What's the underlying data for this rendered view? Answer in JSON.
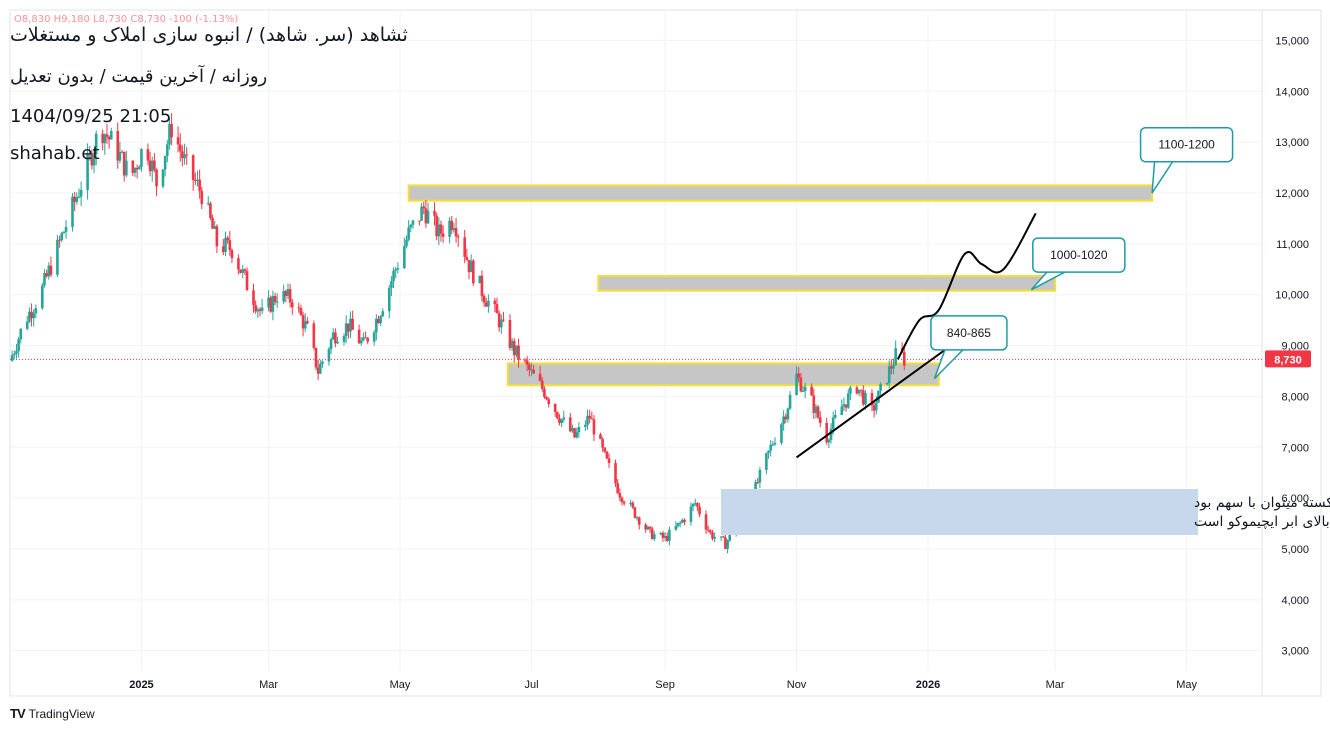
{
  "header": {
    "title": "ثشاهد (سر. شاهد) / انبوه سازی املاک و مستغلات",
    "subtitle": "روزانه / آخرین قیمت / بدون تعدیل",
    "timestamp": "1404/09/25 21:05",
    "site": "shahab.et",
    "ohlc": "O8,830 H9,180 L8,730 C8,730 -100 (-1.13%)"
  },
  "brand": {
    "name": "TradingView",
    "logo": "TV"
  },
  "colors": {
    "up": "#26a69a",
    "down": "#f23645",
    "zone_fill": "#c6c6c6",
    "zone_border": "#f4de3a",
    "callout_border": "#1f9aa6",
    "note_bg": "#c8d8ec",
    "price_label": "#f23645"
  },
  "chart_data": {
    "type": "candlestick",
    "y_axis": {
      "ylim": [
        2600,
        15600
      ],
      "ticks": [
        3000,
        4000,
        5000,
        6000,
        7000,
        8000,
        9000,
        10000,
        11000,
        12000,
        13000,
        14000,
        15000
      ],
      "tick_labels": [
        "3,000",
        "4,000",
        "5,000",
        "6,000",
        "7,000",
        "8,000",
        "9,000",
        "10,000",
        "11,000",
        "12,000",
        "13,000",
        "14,000",
        "15,000"
      ]
    },
    "x_axis": {
      "range": [
        "2024-11-01",
        "2026-06-05"
      ],
      "ticks": [
        {
          "date": "2025-01-01",
          "label": "2025",
          "bold": true
        },
        {
          "date": "2025-03-01",
          "label": "Mar",
          "bold": false
        },
        {
          "date": "2025-05-01",
          "label": "May",
          "bold": false
        },
        {
          "date": "2025-07-01",
          "label": "Jul",
          "bold": false
        },
        {
          "date": "2025-09-01",
          "label": "Sep",
          "bold": false
        },
        {
          "date": "2025-11-01",
          "label": "Nov",
          "bold": false
        },
        {
          "date": "2026-01-01",
          "label": "2026",
          "bold": true
        },
        {
          "date": "2026-03-01",
          "label": "Mar",
          "bold": false
        },
        {
          "date": "2026-05-01",
          "label": "May",
          "bold": false
        }
      ]
    },
    "grid": true,
    "last_price": {
      "value": 8730,
      "label": "8,730"
    },
    "price_path": [
      [
        "2024-11-01",
        8700
      ],
      [
        "2024-11-08",
        9500
      ],
      [
        "2024-11-15",
        10000
      ],
      [
        "2024-11-22",
        10800
      ],
      [
        "2024-11-29",
        11600
      ],
      [
        "2024-12-06",
        12400
      ],
      [
        "2024-12-13",
        13300
      ],
      [
        "2024-12-20",
        12900
      ],
      [
        "2024-12-27",
        12300
      ],
      [
        "2025-01-03",
        13000
      ],
      [
        "2025-01-08",
        12200
      ],
      [
        "2025-01-15",
        13300
      ],
      [
        "2025-01-22",
        12500
      ],
      [
        "2025-01-29",
        12000
      ],
      [
        "2025-02-05",
        11000
      ],
      [
        "2025-02-12",
        10900
      ],
      [
        "2025-02-19",
        10200
      ],
      [
        "2025-02-26",
        9600
      ],
      [
        "2025-03-05",
        10000
      ],
      [
        "2025-03-12",
        9900
      ],
      [
        "2025-03-19",
        9300
      ],
      [
        "2025-03-24",
        8500
      ],
      [
        "2025-03-31",
        9200
      ],
      [
        "2025-04-07",
        9400
      ],
      [
        "2025-04-14",
        9000
      ],
      [
        "2025-04-21",
        9600
      ],
      [
        "2025-04-28",
        10400
      ],
      [
        "2025-05-05",
        11200
      ],
      [
        "2025-05-12",
        11700
      ],
      [
        "2025-05-19",
        11200
      ],
      [
        "2025-05-26",
        11500
      ],
      [
        "2025-06-02",
        10600
      ],
      [
        "2025-06-09",
        10000
      ],
      [
        "2025-06-16",
        9500
      ],
      [
        "2025-06-23",
        8900
      ],
      [
        "2025-06-30",
        8500
      ],
      [
        "2025-07-07",
        8100
      ],
      [
        "2025-07-14",
        7600
      ],
      [
        "2025-07-21",
        7200
      ],
      [
        "2025-07-28",
        7600
      ],
      [
        "2025-08-04",
        6800
      ],
      [
        "2025-08-11",
        6100
      ],
      [
        "2025-08-18",
        5700
      ],
      [
        "2025-08-25",
        5300
      ],
      [
        "2025-09-01",
        5200
      ],
      [
        "2025-09-08",
        5500
      ],
      [
        "2025-09-15",
        5900
      ],
      [
        "2025-09-22",
        5300
      ],
      [
        "2025-09-29",
        5100
      ],
      [
        "2025-10-06",
        5600
      ],
      [
        "2025-10-13",
        6200
      ],
      [
        "2025-10-20",
        7000
      ],
      [
        "2025-10-27",
        7700
      ],
      [
        "2025-11-01",
        8400
      ],
      [
        "2025-11-08",
        7900
      ],
      [
        "2025-11-15",
        7200
      ],
      [
        "2025-11-22",
        7800
      ],
      [
        "2025-11-29",
        8200
      ],
      [
        "2025-12-06",
        7700
      ],
      [
        "2025-12-13",
        8400
      ],
      [
        "2025-12-18",
        8900
      ],
      [
        "2025-12-21",
        8730
      ]
    ],
    "zones": [
      {
        "label": "1100-1200",
        "low": 11850,
        "high": 12150,
        "from": "2025-05-05",
        "to": "2026-04-15"
      },
      {
        "label": "1000-1020",
        "low": 10080,
        "high": 10370,
        "from": "2025-08-01",
        "to": "2026-03-01"
      },
      {
        "label": "840-865",
        "low": 8220,
        "high": 8650,
        "from": "2025-06-20",
        "to": "2026-01-06"
      }
    ],
    "callouts": [
      {
        "text": "1100-1200",
        "anchor_date": "2026-04-15",
        "anchor_price": 12000,
        "box_center_date": "2026-05-01",
        "box_center_price": 12950
      },
      {
        "text": "1000-1020",
        "anchor_date": "2026-02-18",
        "anchor_price": 10100,
        "box_center_date": "2026-03-12",
        "box_center_price": 10780
      },
      {
        "text": "840-865",
        "anchor_date": "2026-01-04",
        "anchor_price": 8350,
        "box_center_date": "2026-01-20",
        "box_center_price": 9250
      }
    ],
    "trendline": [
      [
        "2025-11-01",
        6800
      ],
      [
        "2026-01-10",
        8950
      ]
    ],
    "projection": [
      [
        "2025-12-18",
        8730
      ],
      [
        "2025-12-28",
        9500
      ],
      [
        "2026-01-06",
        9700
      ],
      [
        "2026-01-18",
        10800
      ],
      [
        "2026-01-26",
        10600
      ],
      [
        "2026-02-05",
        10500
      ],
      [
        "2026-02-20",
        11600
      ]
    ],
    "note": {
      "lines": [
        "تا زمانی که خط روند مشکی نشکسته میتوان با سهم بود",
        "در زمان شکست هم باید دوباره تحلیل کرد چون بالای ابر ایچیموکو است"
      ]
    }
  }
}
